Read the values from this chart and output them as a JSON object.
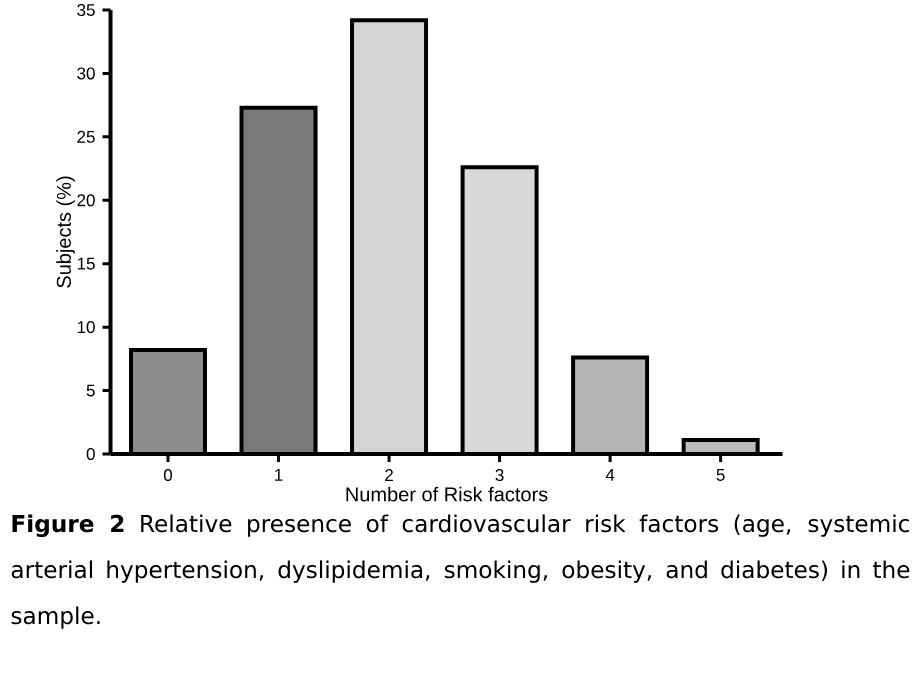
{
  "chart_data": {
    "type": "bar",
    "xlabel": "Number of Risk factors",
    "ylabel": "Subjects (%)",
    "categories": [
      "0",
      "1",
      "2",
      "3",
      "4",
      "5"
    ],
    "values": [
      8.2,
      27.3,
      34.2,
      22.6,
      7.6,
      1.1
    ],
    "colors": [
      "#8c8c8c",
      "#7a7a7a",
      "#d4d4d4",
      "#d8d8d8",
      "#b4b4b4",
      "#bcbcbc"
    ],
    "ylim": [
      0,
      35
    ],
    "yticks": [
      0,
      5,
      10,
      15,
      20,
      25,
      30,
      35
    ],
    "grid": false,
    "annotations": [
      "**Figure 2**   Relative presence of cardiovascular risk factors (age, systemic arterial hypertension, dyslipidemia, smoking, obesity, and diabetes) in the sample."
    ]
  }
}
